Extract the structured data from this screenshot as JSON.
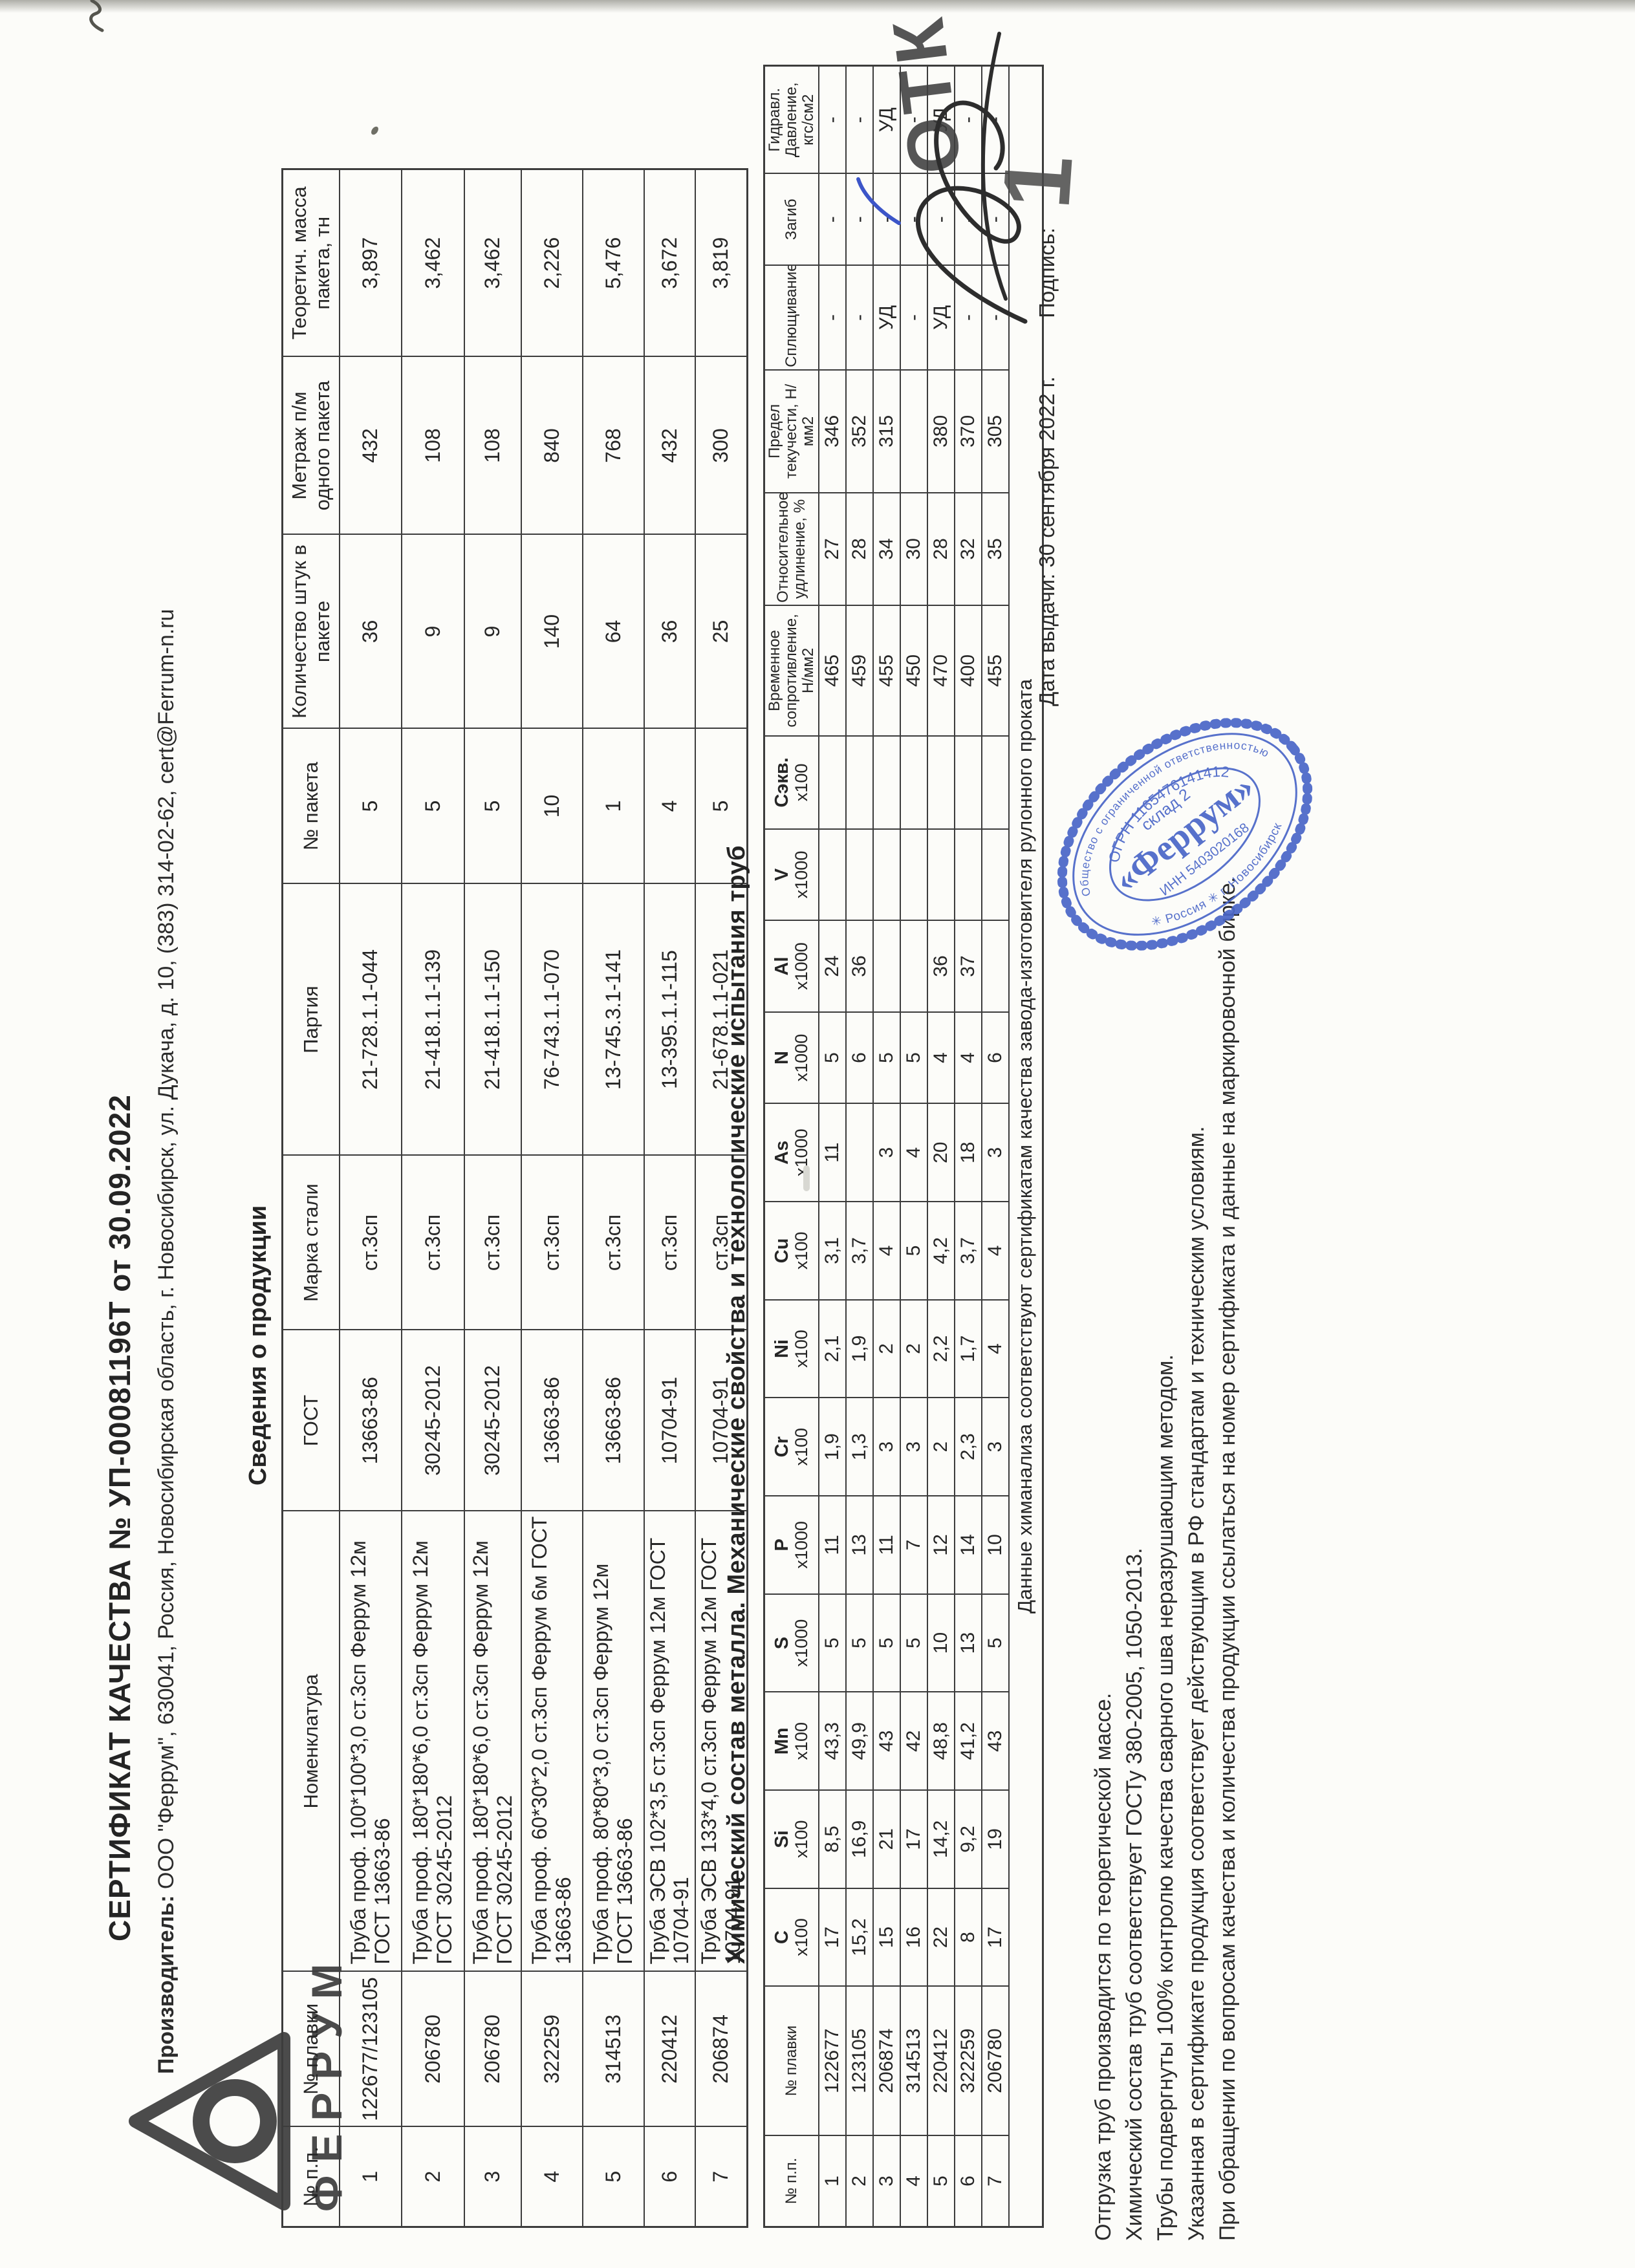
{
  "doc": {
    "title": "СЕРТИФИКАТ КАЧЕСТВА № УП-00081196Т от 30.09.2022",
    "producer_label": "Производитель:",
    "producer_text": "ООО \"Феррум\", 630041, Россия, Новосибирская область, г. Новосибирск, ул. Дукача, д. 10, (383) 314-02-62, cert@Ferrum-n.ru",
    "logo_word": "ФЕРРУМ",
    "section1_title": "Сведения о продукции",
    "section2_title": "Химический состав металла. Механические свойства  и технологические испытания труб"
  },
  "table1": {
    "headers": [
      "№ п.п.",
      "№ плавки",
      "Номенклатура",
      "ГОСТ",
      "Марка стали",
      "Партия",
      "№ пакета",
      "Количество штук в пакете",
      "Метраж п/м одного пакета",
      "Теоретич. масса пакета, тн"
    ],
    "rows": [
      [
        "1",
        "122677/123105",
        "Труба проф. 100*100*3,0 ст.3сп Феррум 12м ГОСТ 13663-86",
        "13663-86",
        "ст.3сп",
        "21-728.1.1-044",
        "5",
        "36",
        "432",
        "3,897"
      ],
      [
        "2",
        "206780",
        "Труба проф. 180*180*6,0 ст.3сп Феррум 12м ГОСТ 30245-2012",
        "30245-2012",
        "ст.3сп",
        "21-418.1.1-139",
        "5",
        "9",
        "108",
        "3,462"
      ],
      [
        "3",
        "206780",
        "Труба проф. 180*180*6,0 ст.3сп Феррум 12м ГОСТ 30245-2012",
        "30245-2012",
        "ст.3сп",
        "21-418.1.1-150",
        "5",
        "9",
        "108",
        "3,462"
      ],
      [
        "4",
        "322259",
        "Труба проф. 60*30*2,0 ст.3сп Феррум 6м ГОСТ 13663-86",
        "13663-86",
        "ст.3сп",
        "76-743.1.1-070",
        "10",
        "140",
        "840",
        "2,226"
      ],
      [
        "5",
        "314513",
        "Труба проф. 80*80*3,0 ст.3сп Феррум 12м ГОСТ 13663-86",
        "13663-86",
        "ст.3сп",
        "13-745.3.1-141",
        "1",
        "64",
        "768",
        "5,476"
      ],
      [
        "6",
        "220412",
        "Труба ЭСВ 102*3,5 ст.3сп Феррум 12м ГОСТ 10704-91",
        "10704-91",
        "ст.3сп",
        "13-395.1.1-115",
        "4",
        "36",
        "432",
        "3,672"
      ],
      [
        "7",
        "206874",
        "Труба ЭСВ 133*4,0 ст.3сп Феррум 12м ГОСТ 10704-91",
        "10704-91",
        "ст.3сп",
        "21-678.1.1-021",
        "5",
        "25",
        "300",
        "3,819"
      ]
    ]
  },
  "table2": {
    "headers": [
      {
        "name": "№ п.п."
      },
      {
        "name": "№ плавки"
      },
      {
        "name": "C",
        "mult": "х100"
      },
      {
        "name": "Si",
        "mult": "х100"
      },
      {
        "name": "Mn",
        "mult": "х100"
      },
      {
        "name": "S",
        "mult": "х1000"
      },
      {
        "name": "P",
        "mult": "х1000"
      },
      {
        "name": "Cr",
        "mult": "х100"
      },
      {
        "name": "Ni",
        "mult": "х100"
      },
      {
        "name": "Cu",
        "mult": "х100"
      },
      {
        "name": "As",
        "mult": "х1000"
      },
      {
        "name": "N",
        "mult": "х1000"
      },
      {
        "name": "Al",
        "mult": "х1000"
      },
      {
        "name": "V",
        "mult": "х1000"
      },
      {
        "name": "Сэкв.",
        "mult": "х100"
      },
      {
        "name": "Временное сопротивление, Н/мм2"
      },
      {
        "name": "Относительное удлинение, %"
      },
      {
        "name": "Предел текучести, Н/мм2"
      },
      {
        "name": "Сплющивание"
      },
      {
        "name": "Загиб"
      },
      {
        "name": "Гидравл. Давление, кгс/см2"
      }
    ],
    "rows": [
      [
        "1",
        "122677",
        "17",
        "8,5",
        "43,3",
        "5",
        "11",
        "1,9",
        "2,1",
        "3,1",
        "11",
        "5",
        "24",
        "",
        "",
        "465",
        "27",
        "346",
        "-",
        "-",
        "-"
      ],
      [
        "2",
        "123105",
        "15,2",
        "16,9",
        "49,9",
        "5",
        "13",
        "1,3",
        "1,9",
        "3,7",
        "",
        "6",
        "36",
        "",
        "",
        "459",
        "28",
        "352",
        "-",
        "-",
        "-"
      ],
      [
        "3",
        "206874",
        "15",
        "21",
        "43",
        "5",
        "11",
        "3",
        "2",
        "4",
        "3",
        "5",
        "",
        "",
        "",
        "455",
        "34",
        "315",
        "УД",
        "-",
        "УД"
      ],
      [
        "4",
        "314513",
        "16",
        "17",
        "42",
        "5",
        "7",
        "3",
        "2",
        "5",
        "4",
        "5",
        "",
        "",
        "",
        "450",
        "30",
        "",
        "-",
        "-",
        "-"
      ],
      [
        "5",
        "220412",
        "22",
        "14,2",
        "48,8",
        "10",
        "12",
        "2",
        "2,2",
        "4,2",
        "20",
        "4",
        "36",
        "",
        "",
        "470",
        "28",
        "380",
        "УД",
        "-",
        "УД"
      ],
      [
        "6",
        "322259",
        "8",
        "9,2",
        "41,2",
        "13",
        "14",
        "2,3",
        "1,7",
        "3,7",
        "18",
        "4",
        "37",
        "",
        "",
        "400",
        "32",
        "370",
        "-",
        "-",
        "-"
      ],
      [
        "7",
        "206780",
        "17",
        "19",
        "43",
        "5",
        "10",
        "3",
        "4",
        "4",
        "3",
        "6",
        "",
        "",
        "",
        "455",
        "35",
        "305",
        "-",
        "-",
        "-"
      ]
    ],
    "note": "Данные химанализа соответствуют сертификатам качества завода-изготовителя рулонного проката"
  },
  "footer": {
    "notes": [
      "Отгрузка труб производится по теоретической массе.",
      "Химический состав труб соответствует ГОСТу 380-2005, 1050-2013.",
      "Трубы подвергнуты 100% контролю качества сварного шва неразрушающим методом.",
      "Указанная в сертификате продукция соответствует действующим в РФ стандартам и техническим условиям.",
      "При обращении по вопросам качества и количества продукции ссылаться на номер сертификата и данные на маркировочной бирке."
    ],
    "issue_date_line": "Дата выдачи: 30 сентября 2022 г.",
    "signature_label": "Подпись:"
  },
  "stamps": {
    "blue": {
      "ring_text_top": "Общество  с  ограниченной  ответственностью",
      "ring_text_bottom": "✳   Россия   ✳   г. Новосибирск",
      "ogrn": "ОГРН 1165476141412",
      "warehouse": "склад 2",
      "company": "«Феррум»",
      "inn": "ИНН 5403020168",
      "color": "#4a66c8"
    },
    "otk": {
      "text": "ОТК",
      "number": "1"
    }
  }
}
